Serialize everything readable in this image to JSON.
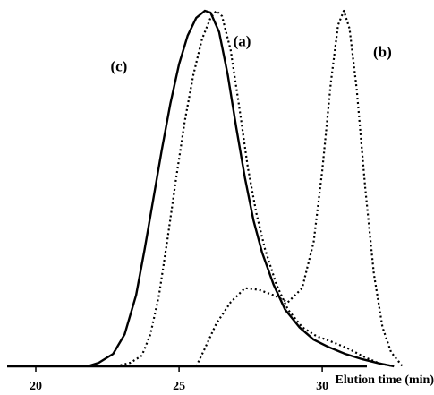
{
  "chart_data": {
    "type": "line",
    "xlabel": "Elution time (min)",
    "ylabel": "",
    "xlim": [
      19.0,
      33.9
    ],
    "ylim": [
      0,
      1.0
    ],
    "x_ticks": [
      20,
      25,
      30
    ],
    "grid": false,
    "legend": "none",
    "series": [
      {
        "name": "(c)",
        "style": "solid",
        "label_at": [
          22.9,
          0.83
        ],
        "points": [
          [
            21.8,
            0.0
          ],
          [
            22.2,
            0.01
          ],
          [
            22.7,
            0.035
          ],
          [
            23.1,
            0.09
          ],
          [
            23.5,
            0.2
          ],
          [
            23.8,
            0.33
          ],
          [
            24.1,
            0.47
          ],
          [
            24.4,
            0.61
          ],
          [
            24.7,
            0.74
          ],
          [
            25.0,
            0.85
          ],
          [
            25.3,
            0.93
          ],
          [
            25.6,
            0.98
          ],
          [
            25.9,
            1.0
          ],
          [
            26.1,
            0.995
          ],
          [
            26.4,
            0.94
          ],
          [
            26.7,
            0.82
          ],
          [
            27.0,
            0.67
          ],
          [
            27.3,
            0.53
          ],
          [
            27.6,
            0.41
          ],
          [
            27.9,
            0.32
          ],
          [
            28.3,
            0.23
          ],
          [
            28.7,
            0.16
          ],
          [
            29.2,
            0.11
          ],
          [
            29.7,
            0.075
          ],
          [
            30.2,
            0.055
          ],
          [
            30.8,
            0.035
          ],
          [
            31.4,
            0.02
          ],
          [
            32.0,
            0.008
          ],
          [
            32.5,
            0.0
          ]
        ]
      },
      {
        "name": "(a)",
        "style": "dotted",
        "label_at": [
          27.2,
          0.9
        ],
        "points": [
          [
            22.8,
            0.0
          ],
          [
            23.3,
            0.01
          ],
          [
            23.7,
            0.03
          ],
          [
            24.0,
            0.09
          ],
          [
            24.3,
            0.2
          ],
          [
            24.6,
            0.36
          ],
          [
            24.9,
            0.53
          ],
          [
            25.2,
            0.69
          ],
          [
            25.5,
            0.82
          ],
          [
            25.8,
            0.92
          ],
          [
            26.1,
            0.98
          ],
          [
            26.3,
            1.0
          ],
          [
            26.5,
            0.985
          ],
          [
            26.8,
            0.89
          ],
          [
            27.1,
            0.73
          ],
          [
            27.4,
            0.56
          ],
          [
            27.7,
            0.43
          ],
          [
            28.0,
            0.33
          ],
          [
            28.4,
            0.23
          ],
          [
            28.8,
            0.16
          ],
          [
            29.3,
            0.11
          ],
          [
            29.8,
            0.085
          ],
          [
            30.3,
            0.07
          ],
          [
            30.9,
            0.05
          ],
          [
            31.5,
            0.025
          ],
          [
            32.0,
            0.008
          ],
          [
            32.5,
            0.0
          ]
        ]
      },
      {
        "name": "(b)",
        "style": "dotted",
        "label_at": [
          32.1,
          0.87
        ],
        "points": [
          [
            25.6,
            0.0
          ],
          [
            25.9,
            0.05
          ],
          [
            26.3,
            0.12
          ],
          [
            26.8,
            0.18
          ],
          [
            27.3,
            0.22
          ],
          [
            27.8,
            0.215
          ],
          [
            28.3,
            0.2
          ],
          [
            28.8,
            0.18
          ],
          [
            29.3,
            0.22
          ],
          [
            29.7,
            0.35
          ],
          [
            30.0,
            0.55
          ],
          [
            30.3,
            0.8
          ],
          [
            30.55,
            0.96
          ],
          [
            30.75,
            1.0
          ],
          [
            30.95,
            0.95
          ],
          [
            31.2,
            0.78
          ],
          [
            31.5,
            0.5
          ],
          [
            31.8,
            0.26
          ],
          [
            32.1,
            0.11
          ],
          [
            32.4,
            0.04
          ],
          [
            32.8,
            0.0
          ]
        ]
      }
    ]
  }
}
